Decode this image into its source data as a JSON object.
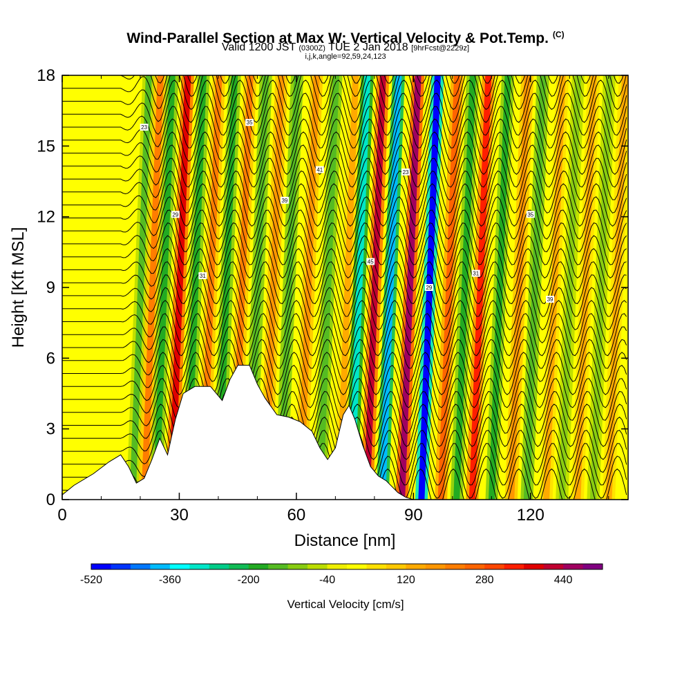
{
  "header": {
    "title": "Wind-Parallel Section at Max W: Vertical Velocity & Pot.Temp.",
    "title_tag": "(C)",
    "subtitle_pre": "Valid 1200 JST",
    "subtitle_utc": "(0300Z)",
    "subtitle_date": "TUE 2 Jan 2018",
    "subtitle_fcst": "[9hrFcst@2229z]",
    "subtitle2": "i,j,k,angle=92,59,24,123"
  },
  "chart_data": {
    "type": "heatmap",
    "title": "Wind-Parallel Section at Max W: Vertical Velocity & Pot.Temp.",
    "xlabel": "Distance [nm]",
    "ylabel": "Height [Kft MSL]",
    "xlim": [
      0,
      145
    ],
    "ylim": [
      0,
      18
    ],
    "x_ticks": [
      0,
      30,
      60,
      90,
      120
    ],
    "y_ticks": [
      0,
      3,
      6,
      9,
      12,
      15,
      18
    ],
    "colorbar": {
      "label": "Vertical Velocity [cm/s]",
      "min": -520,
      "max": 520,
      "ticks": [
        -520,
        -360,
        -200,
        -40,
        120,
        280,
        440
      ],
      "colors": [
        "#0000ff",
        "#0033ff",
        "#0077ff",
        "#00bbff",
        "#00ffff",
        "#00e6c8",
        "#00cc88",
        "#11bb55",
        "#22aa22",
        "#55bb22",
        "#88cc11",
        "#bbdd00",
        "#eeee00",
        "#ffff00",
        "#ffe000",
        "#ffc800",
        "#ffaa00",
        "#ff9600",
        "#ff7d00",
        "#ff6400",
        "#ff4600",
        "#ff1e00",
        "#e00000",
        "#c00030",
        "#a00060",
        "#800080"
      ]
    },
    "velocity_bands": [
      {
        "x": 19,
        "w": -140
      },
      {
        "x": 22,
        "w": 200
      },
      {
        "x": 25,
        "w": -200
      },
      {
        "x": 29,
        "w": 380
      },
      {
        "x": 33,
        "w": -180
      },
      {
        "x": 37,
        "w": 200
      },
      {
        "x": 41,
        "w": -200
      },
      {
        "x": 45,
        "w": 200
      },
      {
        "x": 49,
        "w": -160
      },
      {
        "x": 53,
        "w": 180
      },
      {
        "x": 57,
        "w": -160
      },
      {
        "x": 62,
        "w": 160
      },
      {
        "x": 67,
        "w": -160
      },
      {
        "x": 72,
        "w": 140
      },
      {
        "x": 75,
        "w": -300
      },
      {
        "x": 79,
        "w": 400
      },
      {
        "x": 83,
        "w": -380
      },
      {
        "x": 88,
        "w": 440
      },
      {
        "x": 93,
        "w": -520
      },
      {
        "x": 98,
        "w": 240
      },
      {
        "x": 102,
        "w": -180
      },
      {
        "x": 106,
        "w": 320
      },
      {
        "x": 111,
        "w": -180
      },
      {
        "x": 116,
        "w": 160
      },
      {
        "x": 120,
        "w": -160
      },
      {
        "x": 125,
        "w": 140
      },
      {
        "x": 129,
        "w": -120
      },
      {
        "x": 133,
        "w": 120
      },
      {
        "x": 137,
        "w": -120
      },
      {
        "x": 141,
        "w": 120
      }
    ],
    "terrain": [
      [
        0,
        0.2
      ],
      [
        3,
        0.6
      ],
      [
        8,
        1.1
      ],
      [
        12,
        1.6
      ],
      [
        15,
        1.9
      ],
      [
        17,
        1.4
      ],
      [
        19,
        0.7
      ],
      [
        21,
        0.9
      ],
      [
        23,
        1.7
      ],
      [
        25,
        2.6
      ],
      [
        27,
        1.9
      ],
      [
        29,
        3.4
      ],
      [
        31,
        4.5
      ],
      [
        34,
        4.8
      ],
      [
        38,
        4.8
      ],
      [
        41,
        4.2
      ],
      [
        43,
        5.1
      ],
      [
        45,
        5.7
      ],
      [
        48,
        5.7
      ],
      [
        50,
        4.9
      ],
      [
        52,
        4.3
      ],
      [
        55,
        3.6
      ],
      [
        58,
        3.5
      ],
      [
        61,
        3.3
      ],
      [
        64,
        2.9
      ],
      [
        66,
        2.2
      ],
      [
        68,
        1.7
      ],
      [
        70,
        2.2
      ],
      [
        72,
        3.6
      ],
      [
        73.5,
        4.0
      ],
      [
        75,
        3.4
      ],
      [
        77,
        2.3
      ],
      [
        79,
        1.4
      ],
      [
        81,
        1.0
      ],
      [
        83,
        0.8
      ],
      [
        86,
        0.3
      ],
      [
        88,
        0.1
      ],
      [
        90,
        0.0
      ]
    ]
  },
  "contour_labels": [
    "23",
    "29",
    "31",
    "35",
    "39",
    "41",
    "45"
  ]
}
